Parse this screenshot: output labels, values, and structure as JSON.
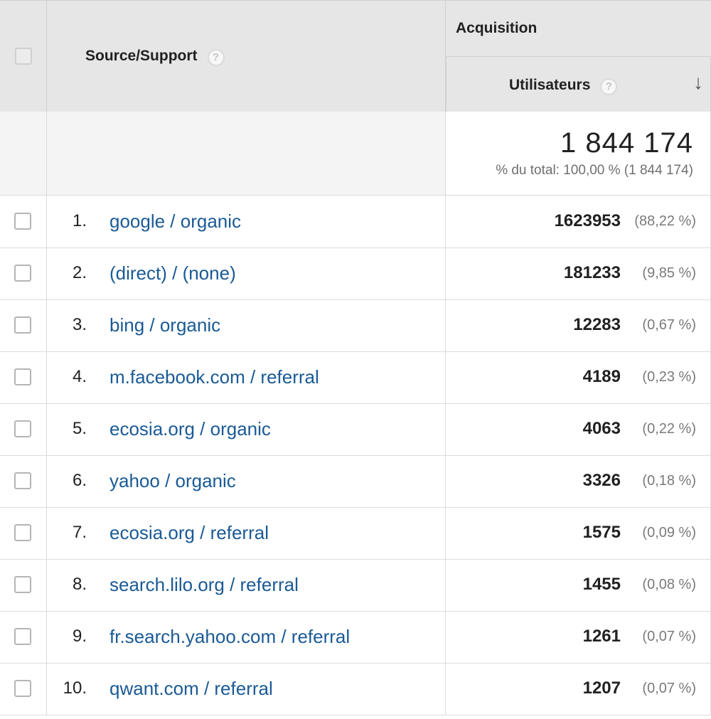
{
  "header": {
    "source_label": "Source/Support",
    "group_label": "Acquisition",
    "metric_label": "Utilisateurs",
    "help_glyph": "?",
    "sort_glyph": "↓"
  },
  "totals": {
    "value": "1 844 174",
    "pct_text": "% du total: 100,00 % (1 844 174)"
  },
  "rows": [
    {
      "rank": "1.",
      "source": "google / organic",
      "users": "1623953",
      "pct": "(88,22 %)"
    },
    {
      "rank": "2.",
      "source": "(direct) / (none)",
      "users": "181233",
      "pct": "(9,85 %)"
    },
    {
      "rank": "3.",
      "source": "bing / organic",
      "users": "12283",
      "pct": "(0,67 %)"
    },
    {
      "rank": "4.",
      "source": "m.facebook.com / referral",
      "users": "4189",
      "pct": "(0,23 %)"
    },
    {
      "rank": "5.",
      "source": "ecosia.org / organic",
      "users": "4063",
      "pct": "(0,22 %)"
    },
    {
      "rank": "6.",
      "source": "yahoo / organic",
      "users": "3326",
      "pct": "(0,18 %)"
    },
    {
      "rank": "7.",
      "source": "ecosia.org / referral",
      "users": "1575",
      "pct": "(0,09 %)"
    },
    {
      "rank": "8.",
      "source": "search.lilo.org / referral",
      "users": "1455",
      "pct": "(0,08 %)"
    },
    {
      "rank": "9.",
      "source": "fr.search.yahoo.com / referral",
      "users": "1261",
      "pct": "(0,07 %)"
    },
    {
      "rank": "10.",
      "source": "qwant.com / referral",
      "users": "1207",
      "pct": "(0,07 %)"
    }
  ],
  "colors": {
    "link": "#1a5a96",
    "header_bg": "#e6e6e6",
    "totals_bg": "#f4f4f4"
  }
}
